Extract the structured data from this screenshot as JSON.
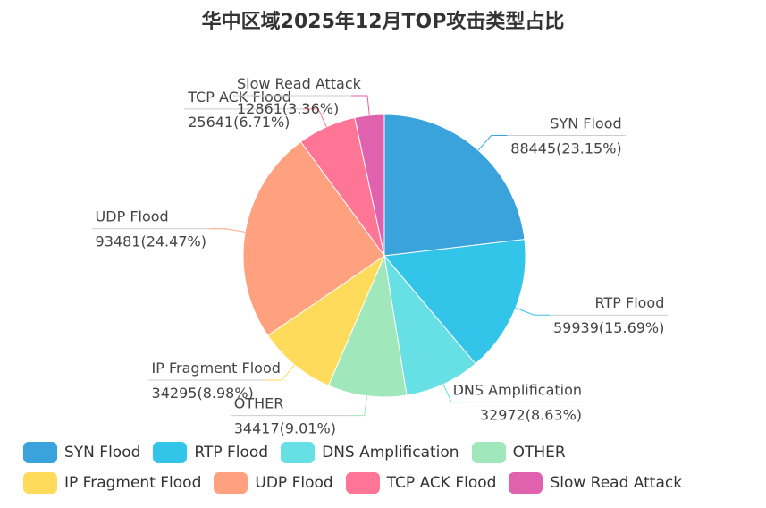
{
  "chart_data": {
    "type": "pie",
    "title": "华中区域2025年12月TOP攻击类型占比",
    "slices": [
      {
        "name": "SYN Flood",
        "value": 88445,
        "percent": "23.15%",
        "color": "#3aa3dc"
      },
      {
        "name": "RTP Flood",
        "value": 59939,
        "percent": "15.69%",
        "color": "#33c5e9"
      },
      {
        "name": "DNS Amplification",
        "value": 32972,
        "percent": "8.63%",
        "color": "#66e0e4"
      },
      {
        "name": "OTHER",
        "value": 34417,
        "percent": "9.01%",
        "color": "#a0e8bc"
      },
      {
        "name": "IP Fragment Flood",
        "value": 34295,
        "percent": "8.98%",
        "color": "#ffdb5c"
      },
      {
        "name": "UDP Flood",
        "value": 93481,
        "percent": "24.47%",
        "color": "#ffa07f"
      },
      {
        "name": "TCP ACK Flood",
        "value": 25641,
        "percent": "6.71%",
        "color": "#ff7596"
      },
      {
        "name": "Slow Read Attack",
        "value": 12861,
        "percent": "3.36%",
        "color": "#e062ae"
      }
    ],
    "legend_position": "bottom"
  }
}
